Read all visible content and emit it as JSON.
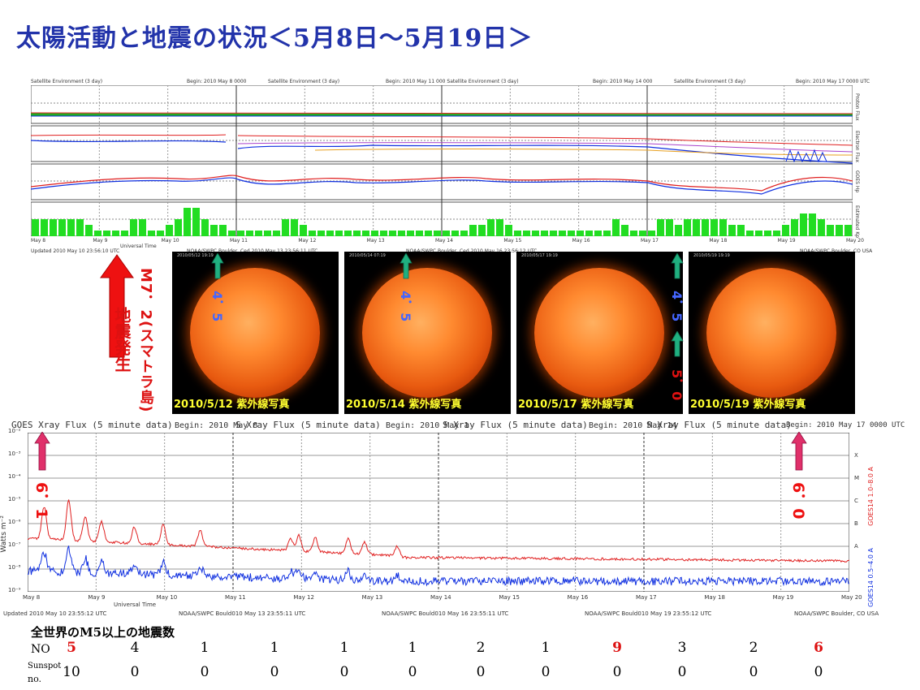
{
  "title": "太陽活動と地震の状況＜5月8日～5月19日＞",
  "satellite": {
    "header_labels": [
      "Satellite Environment (3 day)",
      "Begin: 2010 May 8 0000",
      "Satellite Environment (3 day)",
      "Begin: 2010 May 11 000 Satellite Environment (3 day)",
      "Begin: 2010 May 14 000",
      "Satellite Environment (3 day)",
      "Begin: 2010 May 17 0000 UTC"
    ],
    "side_labels": [
      "Proton Flux",
      "Electron Flux",
      "GOES Hp",
      "Estimated Kp"
    ],
    "day_labels": [
      "May 8",
      "May 9",
      "May 10",
      "May 11",
      "May 12",
      "May 13",
      "May 14",
      "May 15",
      "May 16",
      "May 17",
      "May 18",
      "May 19",
      "May 20"
    ],
    "axis_title": "Universal Time",
    "footer_labels": [
      "Updated 2010 May 10 23:56:10 UTC",
      "NOAA/SWPC Boulder, Ced 2010 May 13 23:56:11 UTC",
      "NOAA/SWPC Boulder, Ced 2010 May 16 23:56:12 UTC",
      "NOAA/SWPC Boulder, CO USA"
    ]
  },
  "sun_images": [
    {
      "caption": "2010/5/12 紫外線写真",
      "stamp": "2010/05/12 19:19"
    },
    {
      "caption": "2010/5/14 紫外線写真",
      "stamp": "2010/05/14 07:19"
    },
    {
      "caption": "2010/5/17 紫外線写真",
      "stamp": "2010/05/17 19:19"
    },
    {
      "caption": "2010/5/19 紫外線写真",
      "stamp": "2010/05/19 19:19"
    }
  ],
  "annotations": {
    "quake_main": "M7．2(スマトラ島)",
    "quake_main_note": "地震発生",
    "mag_45a": "4．5",
    "mag_45b": "4．5",
    "mag_45c": "4．5",
    "mag_50": "5．0",
    "mag_61": "6．1",
    "mag_60": "6．0"
  },
  "xray": {
    "header_labels": [
      "GOES Xray Flux (5 minute data)",
      "Begin: 2010 May 8",
      "S Xray Flux (5 minute data)",
      "Begin: 2010 May 1",
      "S Xray Flux (5 minute data)",
      "Begin: 2010 May 14",
      "S Xray Flux (5 minute data)",
      "Begin: 2010 May 17 0000 UTC"
    ],
    "y_title": "Watts m⁻²",
    "y_ticks": [
      "10⁻²",
      "10⁻³",
      "10⁻⁴",
      "10⁻⁵",
      "10⁻⁶",
      "10⁻⁷",
      "10⁻⁸",
      "10⁻⁹"
    ],
    "class_labels": [
      "X",
      "M",
      "C",
      "B",
      "A"
    ],
    "right_labels": [
      "GOES14 1.0–8.0 A",
      "GOES14 0.5–4.0 A"
    ],
    "day_labels": [
      "May 8",
      "May 9",
      "May 10",
      "May 11",
      "May 12",
      "May 13",
      "May 14",
      "May 15",
      "May 16",
      "May 17",
      "May 18",
      "May 19",
      "May 20"
    ],
    "axis_title": "Universal Time",
    "footer_labels": [
      "Updated 2010 May 10 23:55:12 UTC",
      "NOAA/SWPC Bould010 May 13 23:55:11 UTC",
      "NOAA/SWPC Bould010 May 16 23:55:11 UTC",
      "NOAA/SWPC Bould010 May 19 23:55:12 UTC",
      "NOAA/SWPC Boulder, CO USA"
    ]
  },
  "table": {
    "heading": "全世界のM5以上の地震数",
    "no_label": "NO",
    "sunspot_label_1": "Sunspot",
    "sunspot_label_2": "no.",
    "quake_counts": [
      "5",
      "4",
      "1",
      "1",
      "1",
      "1",
      "2",
      "1",
      "9",
      "3",
      "2",
      "6"
    ],
    "sunspot_counts": [
      "10",
      "0",
      "0",
      "0",
      "0",
      "0",
      "0",
      "0",
      "0",
      "0",
      "0",
      "0"
    ],
    "highlight_color": "#dd1111"
  },
  "colors": {
    "title": "#2233aa",
    "xray_long": "#e02020",
    "xray_short": "#1030e0",
    "kp_bar": "#22dd22",
    "arrow_red": "#ee1111",
    "arrow_green": "#20b080",
    "arrow_pink": "#e0306a"
  }
}
